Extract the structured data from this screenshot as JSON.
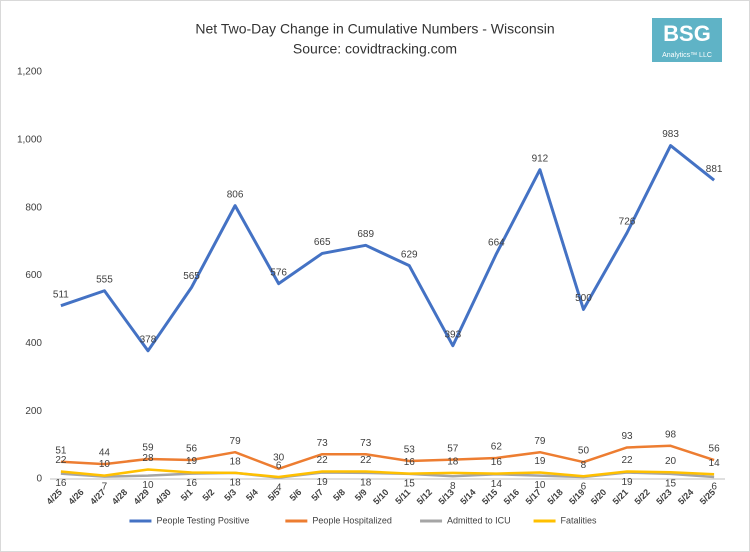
{
  "logo": {
    "text": "BSG",
    "subtext": "Analytics™ LLC"
  },
  "chart_data": {
    "type": "line",
    "title": "Net Two-Day Change in Cumulative Numbers - Wisconsin",
    "subtitle": "Source: covidtracking.com",
    "categories": [
      "4/25",
      "4/26",
      "4/27",
      "4/28",
      "4/29",
      "4/30",
      "5/1",
      "5/2",
      "5/3",
      "5/4",
      "5/5",
      "5/6",
      "5/7",
      "5/8",
      "5/9",
      "5/10",
      "5/11",
      "5/12",
      "5/13",
      "5/14",
      "5/15",
      "5/16",
      "5/17",
      "5/18",
      "5/19",
      "5/20",
      "5/21",
      "5/22",
      "5/23",
      "5/24",
      "5/25"
    ],
    "x": [
      "4/25",
      "4/27",
      "4/29",
      "5/1",
      "5/3",
      "5/5",
      "5/7",
      "5/9",
      "5/11",
      "5/13",
      "5/15",
      "5/17",
      "5/19",
      "5/21",
      "5/23",
      "5/25"
    ],
    "series": [
      {
        "name": "People Testing Positive",
        "color": "#4472c4",
        "values": [
          511,
          555,
          378,
          565,
          806,
          576,
          665,
          689,
          629,
          393,
          664,
          912,
          500,
          726,
          983,
          881
        ]
      },
      {
        "name": "People Hospitalized",
        "color": "#ed7d31",
        "values": [
          51,
          44,
          59,
          56,
          79,
          30,
          73,
          73,
          53,
          57,
          62,
          79,
          50,
          93,
          98,
          56
        ]
      },
      {
        "name": "Admitted to ICU",
        "color": "#a5a5a5",
        "values": [
          16,
          7,
          10,
          16,
          18,
          4,
          19,
          18,
          15,
          8,
          14,
          10,
          6,
          19,
          15,
          6
        ]
      },
      {
        "name": "Fatalities",
        "color": "#ffc000",
        "values": [
          22,
          10,
          28,
          19,
          18,
          6,
          22,
          22,
          16,
          18,
          16,
          19,
          8,
          22,
          20,
          14
        ]
      }
    ],
    "ylim": [
      0,
      1200
    ],
    "yticks": [
      0,
      200,
      400,
      600,
      800,
      {
        "value": 1000,
        "label": "1,000"
      },
      {
        "value": 1200,
        "label": "1,200"
      }
    ],
    "legend": "bottom"
  }
}
